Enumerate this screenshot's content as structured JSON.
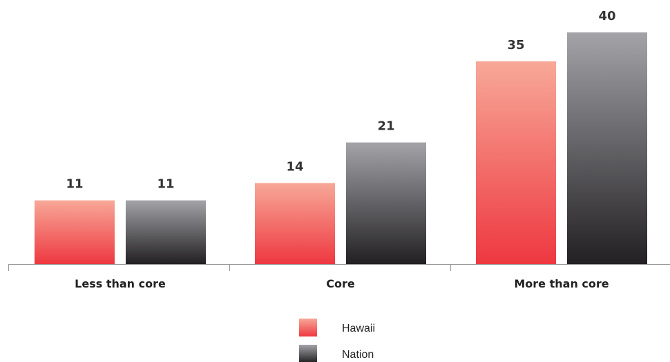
{
  "chart_data": {
    "type": "bar",
    "categories": [
      "Less than core",
      "Core",
      "More than core"
    ],
    "series": [
      {
        "name": "Hawaii",
        "values": [
          11,
          14,
          35
        ]
      },
      {
        "name": "Nation",
        "values": [
          11,
          21,
          40
        ]
      }
    ],
    "ylim": [
      0,
      40
    ],
    "grid": false,
    "legend_position": "bottom-center"
  },
  "colors": {
    "hawaii_top": "#f7a898",
    "hawaii_bottom": "#ee3840",
    "nation_top": "#a3a3a8",
    "nation_bottom": "#222022",
    "axis": "#999999"
  }
}
